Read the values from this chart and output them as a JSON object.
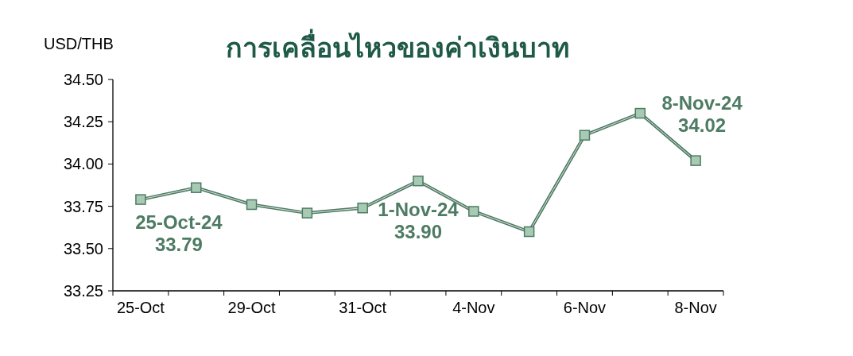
{
  "chart_data": {
    "type": "line",
    "title": "การเคลื่อนไหวของค่าเงินบาท",
    "ylabel": "USD/THB",
    "categories": [
      "25-Oct",
      null,
      "29-Oct",
      null,
      "31-Oct",
      null,
      "4-Nov",
      null,
      "6-Nov",
      null,
      "8-Nov"
    ],
    "series": [
      {
        "color": "#4e7b63",
        "values": [
          33.79,
          33.86,
          33.76,
          33.71,
          33.74,
          33.9,
          33.72,
          33.6,
          34.17,
          34.3,
          34.02
        ]
      }
    ],
    "marker": "square",
    "grid": false,
    "ylim": [
      33.25,
      34.5
    ],
    "yticks": [
      {
        "value": 33.25,
        "label": "33.25"
      },
      {
        "value": 33.5,
        "label": "33.50"
      },
      {
        "value": 33.75,
        "label": "33.75"
      },
      {
        "value": 34.0,
        "label": "34.00"
      },
      {
        "value": 34.25,
        "label": "34.25"
      },
      {
        "value": 34.5,
        "label": "34.50"
      }
    ],
    "annotations": [
      {
        "text": "25-Oct-24\n33.79",
        "x": "25-Oct",
        "y": 33.79
      },
      {
        "text": "1-Nov-24\n33.90",
        "y": 33.9
      },
      {
        "text": "8-Nov-24\n34.02",
        "x": "8-Nov",
        "y": 34.02
      }
    ]
  }
}
